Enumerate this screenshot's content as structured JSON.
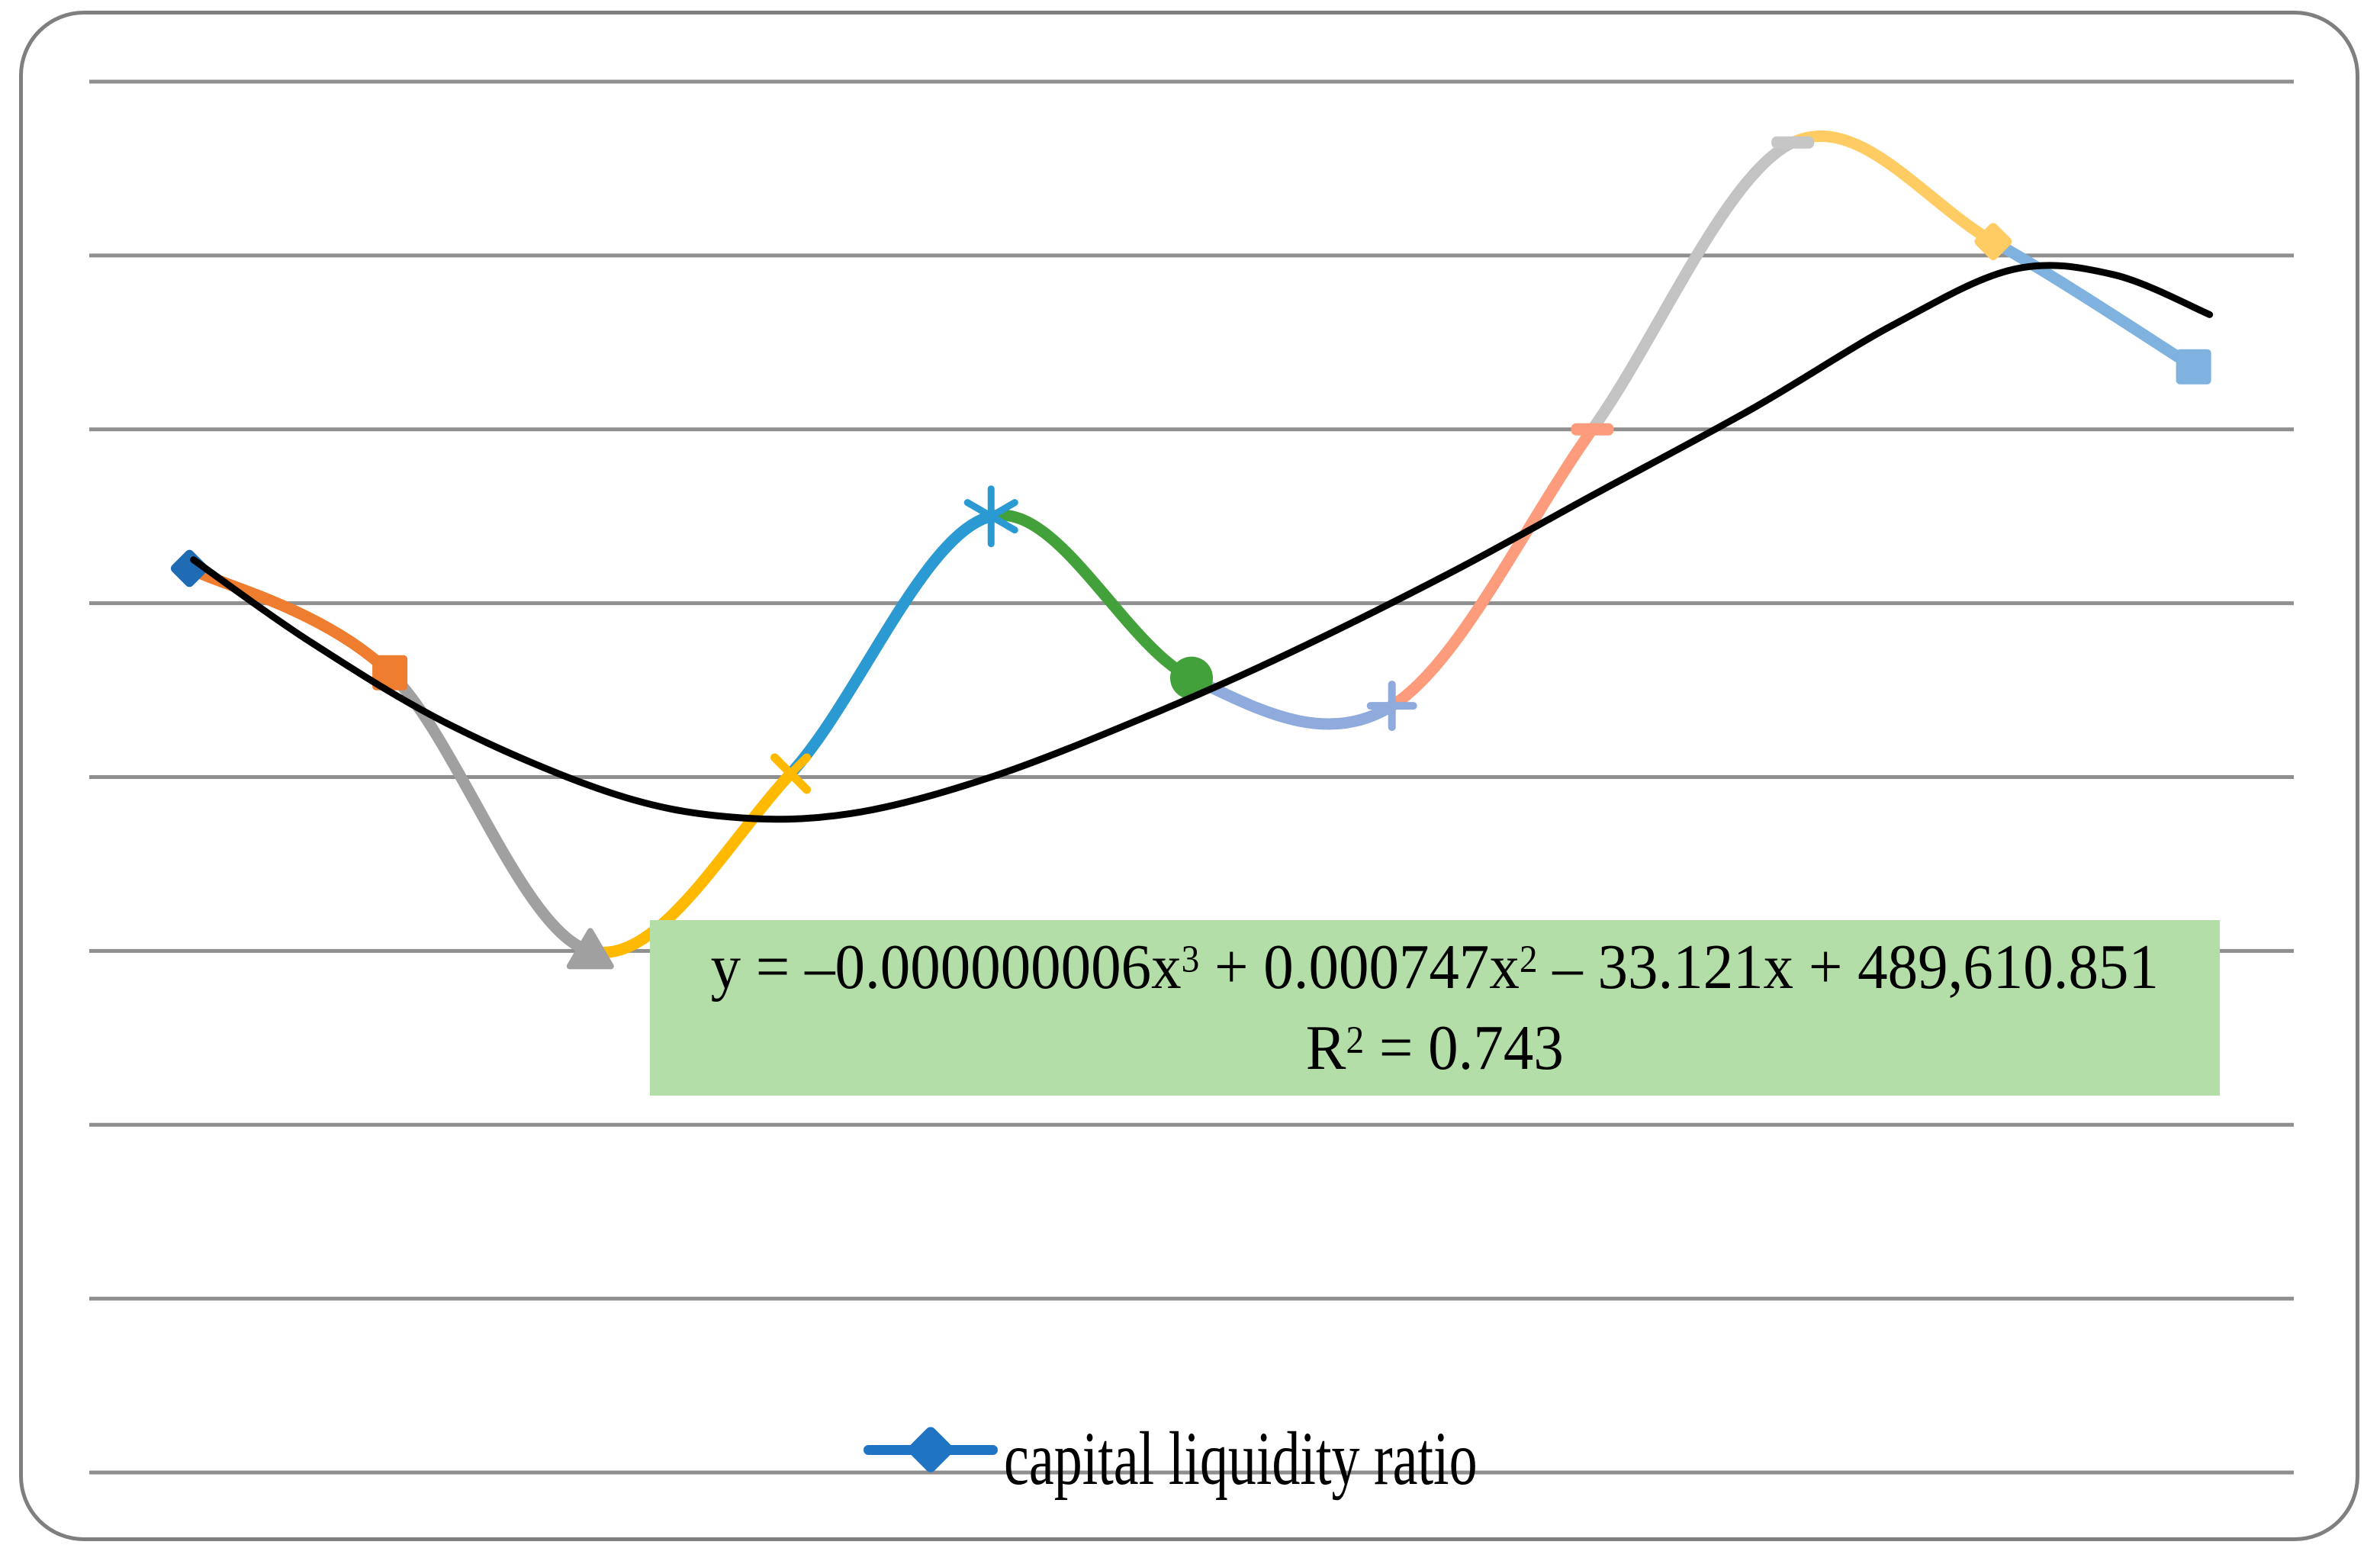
{
  "frame": {
    "border_color": "#7F7F7F",
    "background": "#FFFFFF"
  },
  "chart_data": {
    "type": "line",
    "smooth": true,
    "x": [
      1,
      2,
      3,
      4,
      5,
      6,
      7,
      8,
      9,
      10,
      11
    ],
    "x_axis_labels_visible": false,
    "y_axis_labels_visible": false,
    "ylim": [
      0,
      8
    ],
    "gridlines": {
      "values": [
        0,
        1,
        2,
        3,
        4,
        5,
        6,
        7,
        8
      ],
      "color": "#8F8F8F",
      "width": 5
    },
    "series": [
      {
        "name": "capital liquidity ratio",
        "values": [
          5.2,
          4.6,
          3.0,
          4.02,
          5.5,
          4.57,
          4.41,
          6.0,
          7.65,
          7.08,
          6.36
        ],
        "line_width": 15,
        "marker_shapes": [
          "diamond",
          "square",
          "triangle",
          "x",
          "asterisk",
          "circle",
          "plus",
          "dash",
          "dash",
          "diamond",
          "square"
        ],
        "point_colors": [
          "#1F6CB4",
          "#EE7D2F",
          "#A0A0A0",
          "#FFB900",
          "#2B9AD2",
          "#43A13C",
          "#8FAADC",
          "#FC9C7C",
          "#C6C6C6",
          "#FFCB63",
          "#7FB2DE"
        ],
        "segment_colors": [
          "#EE7D2F",
          "#A0A0A0",
          "#FFB900",
          "#2B9AD2",
          "#43A13C",
          "#8FAADC",
          "#FC9C7C",
          "#C3C3C3",
          "#FFCB63",
          "#7FB2DE"
        ]
      }
    ],
    "trendline": {
      "type": "polynomial",
      "order": 3,
      "color": "#000000",
      "width": 9,
      "samples": [
        [
          0.02,
          5.25
        ],
        [
          0.6,
          4.78
        ],
        [
          1.3,
          4.3
        ],
        [
          2.1,
          3.91
        ],
        [
          2.7,
          3.77
        ],
        [
          3.3,
          3.79
        ],
        [
          4.0,
          4.0
        ],
        [
          4.8,
          4.36
        ],
        [
          5.5,
          4.72
        ],
        [
          6.3,
          5.18
        ],
        [
          7.0,
          5.62
        ],
        [
          7.8,
          6.12
        ],
        [
          8.5,
          6.6
        ],
        [
          9.1,
          6.92
        ],
        [
          9.6,
          6.89
        ],
        [
          10.08,
          6.66
        ]
      ]
    },
    "annotation": {
      "bg": "#B4DEA8",
      "equation_parts": [
        "y = –0.000000006x",
        "3",
        " + 0.000747x",
        "2",
        " – 33.121x + 489,610.851"
      ],
      "r2_parts": [
        "R",
        "2",
        " = 0.743"
      ]
    },
    "legend": {
      "position": "bottom",
      "label": "capital liquidity ratio",
      "marker": "diamond",
      "color": "#2074C4"
    }
  }
}
